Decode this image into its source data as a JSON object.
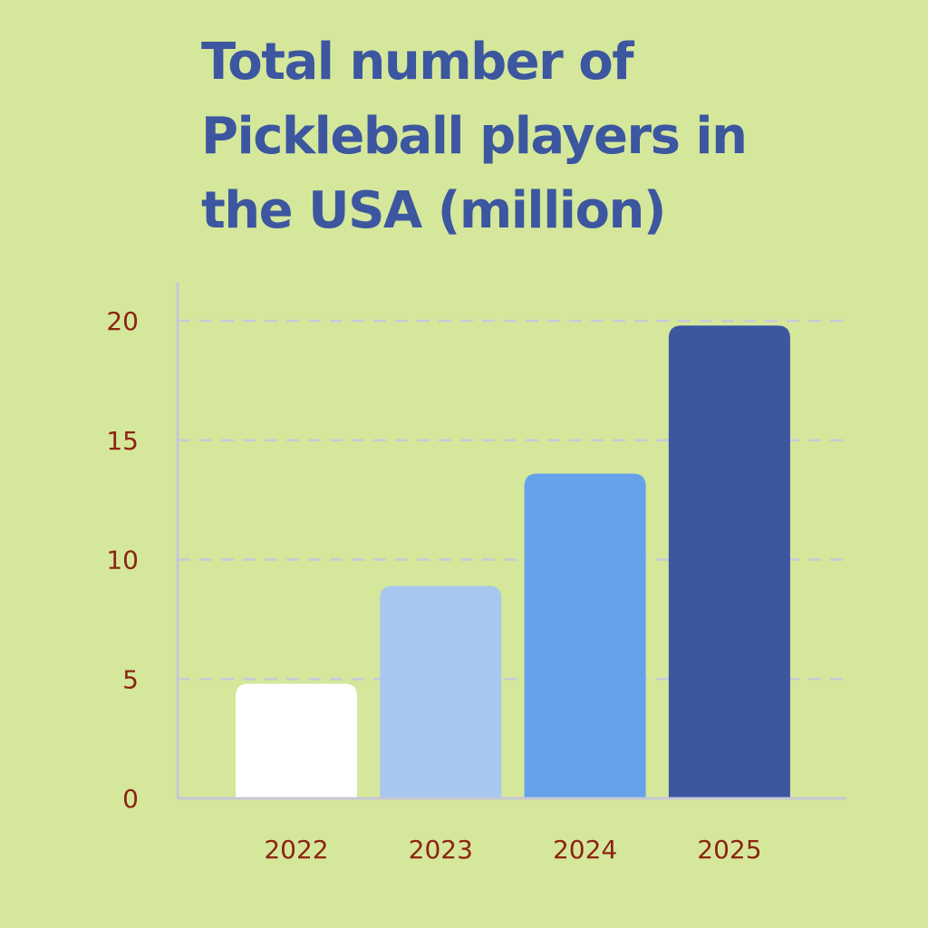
{
  "chart_data": {
    "type": "bar",
    "title_lines": [
      "Total number of",
      "Pickleball players in",
      "the USA (million)"
    ],
    "categories": [
      "2022",
      "2023",
      "2024",
      "2025"
    ],
    "values": [
      4.8,
      8.9,
      13.6,
      19.8
    ],
    "bar_colors": [
      "#ffffff",
      "#a8c7ee",
      "#65a2ea",
      "#3c56a0"
    ],
    "ylim": [
      0,
      20
    ],
    "yticks": [
      "0",
      "5",
      "10",
      "15",
      "20"
    ],
    "grid": true,
    "grid_style": "dashed",
    "colors": {
      "background": "#d5e79b",
      "title": "#3c56a0",
      "tick_labels": "#8b2414",
      "axis": "#c7c7d6",
      "grid": "#c9c9d9"
    }
  }
}
